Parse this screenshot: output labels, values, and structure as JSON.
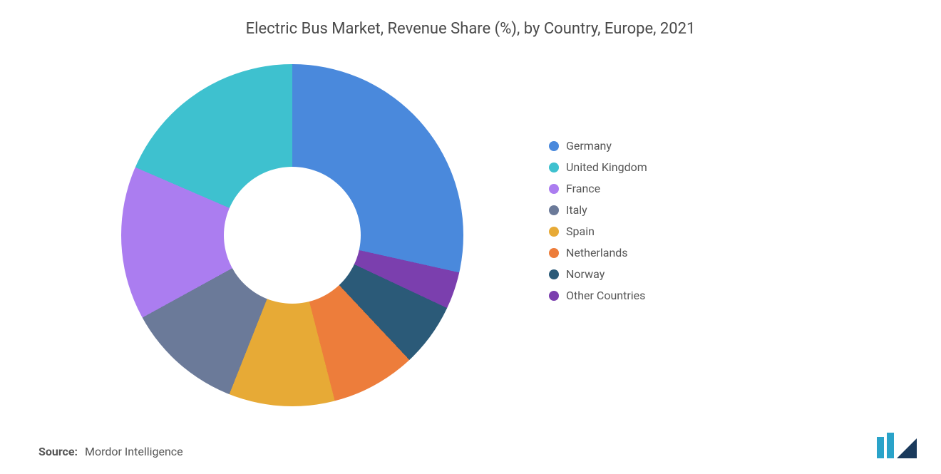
{
  "title": "Electric Bus Market, Revenue Share (%), by Country, Europe, 2021",
  "title_fontsize": 22,
  "title_color": "#4a4a4a",
  "background_color": "#ffffff",
  "source_label": "Source:",
  "source_text": "Mordor Intelligence",
  "source_fontsize": 16,
  "source_color": "#555555",
  "logo_colors": {
    "bar": "#2aa3c9",
    "tri": "#1a3a5c"
  },
  "chart": {
    "type": "donut",
    "hole_ratio": 0.4,
    "start_angle_deg": 0,
    "segments": [
      {
        "label": "Germany",
        "value": 28.5,
        "color": "#4a89dc"
      },
      {
        "label": "United Kingdom",
        "value": 18.5,
        "color": "#3ec1cf"
      },
      {
        "label": "France",
        "value": 14.5,
        "color": "#ab7df0"
      },
      {
        "label": "Italy",
        "value": 11.0,
        "color": "#6b7a99"
      },
      {
        "label": "Spain",
        "value": 10.0,
        "color": "#e7aa36"
      },
      {
        "label": "Netherlands",
        "value": 8.0,
        "color": "#ed7d3b"
      },
      {
        "label": "Norway",
        "value": 6.0,
        "color": "#2b5a78"
      },
      {
        "label": "Other Countries",
        "value": 3.5,
        "color": "#7b3fae"
      }
    ],
    "legend_fontsize": 16,
    "legend_color": "#555555"
  }
}
